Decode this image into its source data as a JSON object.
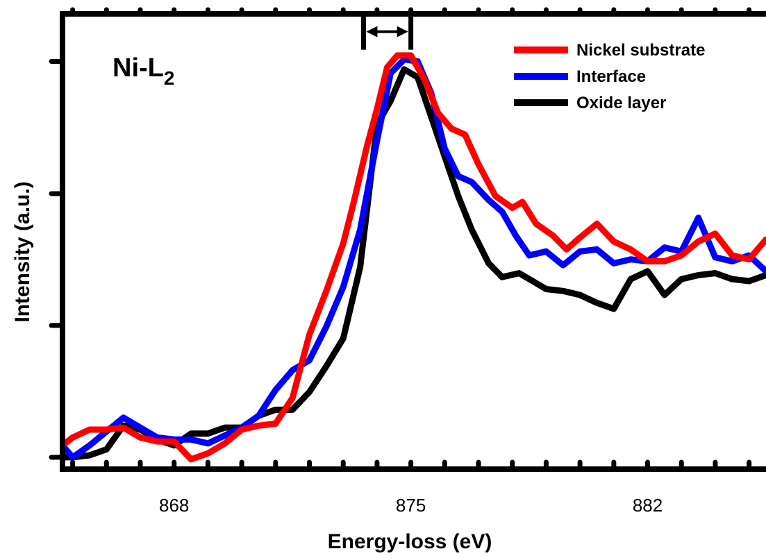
{
  "chart_data": {
    "type": "line",
    "xlabel": "Energy-loss (eV)",
    "ylabel": "Intensity (a.u.)",
    "xlim": [
      864.7,
      885.5
    ],
    "ylim": [
      -0.03,
      1.12
    ],
    "xticks": [
      868,
      875,
      882
    ],
    "xtick_labels": [
      "868",
      "875",
      "882"
    ],
    "panel_label": {
      "main": "Ni-L",
      "sub": "2"
    },
    "marker": {
      "x1": 873.6,
      "x2": 875.0,
      "y": 1.075
    },
    "legend_position": "top-right",
    "grid": false,
    "series": [
      {
        "name": "Nickel substrate",
        "color": "#ff0000",
        "x": [
          864.7,
          865.0,
          865.5,
          866.0,
          866.5,
          867.0,
          867.5,
          868.0,
          868.5,
          869.0,
          869.5,
          870.0,
          870.5,
          871.0,
          871.5,
          872.0,
          872.5,
          873.0,
          873.3,
          873.7,
          874.0,
          874.3,
          874.6,
          875.0,
          875.4,
          875.8,
          876.2,
          876.6,
          877.0,
          877.5,
          878.0,
          878.3,
          878.7,
          879.2,
          879.6,
          880.0,
          880.5,
          881.0,
          881.5,
          882.0,
          882.5,
          883.0,
          883.5,
          884.0,
          884.5,
          885.0,
          885.5
        ],
        "y": [
          0.03,
          0.05,
          0.07,
          0.07,
          0.075,
          0.05,
          0.04,
          0.04,
          -0.005,
          0.01,
          0.035,
          0.07,
          0.08,
          0.085,
          0.15,
          0.31,
          0.42,
          0.54,
          0.64,
          0.785,
          0.88,
          0.985,
          1.015,
          1.015,
          0.955,
          0.87,
          0.83,
          0.815,
          0.74,
          0.66,
          0.63,
          0.645,
          0.59,
          0.56,
          0.525,
          0.555,
          0.59,
          0.545,
          0.525,
          0.495,
          0.495,
          0.51,
          0.545,
          0.565,
          0.51,
          0.5,
          0.55
        ]
      },
      {
        "name": "Interface",
        "color": "#0000ff",
        "x": [
          864.7,
          865.0,
          865.5,
          866.0,
          866.5,
          867.0,
          867.5,
          868.0,
          868.5,
          869.0,
          869.5,
          870.0,
          870.5,
          871.0,
          871.5,
          872.0,
          872.5,
          873.0,
          873.5,
          874.0,
          874.4,
          874.8,
          875.2,
          875.6,
          876.0,
          876.4,
          876.8,
          877.3,
          877.7,
          878.1,
          878.5,
          879.0,
          879.5,
          880.0,
          880.5,
          881.0,
          881.5,
          882.0,
          882.5,
          883.0,
          883.5,
          884.0,
          884.5,
          885.0,
          885.5
        ],
        "y": [
          0.03,
          0.0,
          0.03,
          0.065,
          0.1,
          0.075,
          0.05,
          0.045,
          0.045,
          0.035,
          0.055,
          0.075,
          0.105,
          0.17,
          0.22,
          0.245,
          0.33,
          0.43,
          0.575,
          0.8,
          0.97,
          1.005,
          1.0,
          0.92,
          0.78,
          0.71,
          0.695,
          0.65,
          0.62,
          0.56,
          0.51,
          0.52,
          0.485,
          0.52,
          0.525,
          0.49,
          0.5,
          0.495,
          0.53,
          0.52,
          0.605,
          0.505,
          0.495,
          0.51,
          0.47
        ]
      },
      {
        "name": "Oxide layer",
        "color": "#000000",
        "x": [
          864.7,
          865.0,
          865.5,
          866.0,
          866.5,
          867.0,
          867.5,
          868.0,
          868.5,
          869.0,
          869.5,
          870.0,
          870.5,
          871.0,
          871.5,
          872.0,
          872.5,
          873.0,
          873.5,
          874.0,
          874.4,
          874.8,
          875.2,
          875.6,
          876.0,
          876.4,
          876.8,
          877.3,
          877.7,
          878.2,
          878.6,
          879.0,
          879.5,
          880.0,
          880.5,
          881.0,
          881.5,
          882.0,
          882.5,
          883.0,
          883.5,
          884.0,
          884.5,
          885.0,
          885.5
        ],
        "y": [
          0.0,
          0.0,
          0.005,
          0.02,
          0.08,
          0.07,
          0.045,
          0.03,
          0.06,
          0.06,
          0.075,
          0.075,
          0.105,
          0.12,
          0.12,
          0.165,
          0.23,
          0.3,
          0.48,
          0.84,
          0.9,
          0.98,
          0.96,
          0.86,
          0.76,
          0.66,
          0.575,
          0.49,
          0.455,
          0.465,
          0.445,
          0.425,
          0.42,
          0.41,
          0.39,
          0.375,
          0.45,
          0.47,
          0.41,
          0.45,
          0.46,
          0.465,
          0.45,
          0.445,
          0.46
        ]
      }
    ]
  }
}
